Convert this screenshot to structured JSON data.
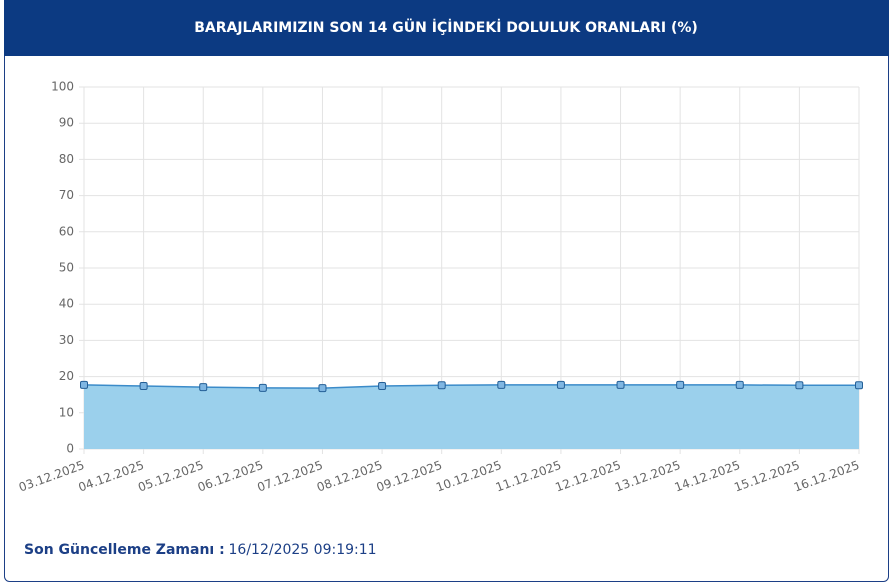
{
  "chart_data": {
    "type": "area",
    "title": "BARAJLARIMIZIN SON 14 GÜN İÇİNDEKİ DOLULUK ORANLARI (%)",
    "categories": [
      "03.12.2025",
      "04.12.2025",
      "05.12.2025",
      "06.12.2025",
      "07.12.2025",
      "08.12.2025",
      "09.12.2025",
      "10.12.2025",
      "11.12.2025",
      "12.12.2025",
      "13.12.2025",
      "14.12.2025",
      "15.12.2025",
      "16.12.2025"
    ],
    "series": [
      {
        "color": "#3b8bc9",
        "fill": "#9bd0ec",
        "values": [
          17.7,
          17.4,
          17.1,
          16.9,
          16.8,
          17.4,
          17.6,
          17.7,
          17.7,
          17.7,
          17.7,
          17.7,
          17.6,
          17.6
        ]
      }
    ],
    "ylim": [
      0,
      100
    ],
    "yticks": [
      0,
      10,
      20,
      30,
      40,
      50,
      60,
      70,
      80,
      90,
      100
    ],
    "grid": true
  },
  "footer": {
    "label": "Son Güncelleme Zamanı :",
    "value": "16/12/2025 09:19:11"
  }
}
